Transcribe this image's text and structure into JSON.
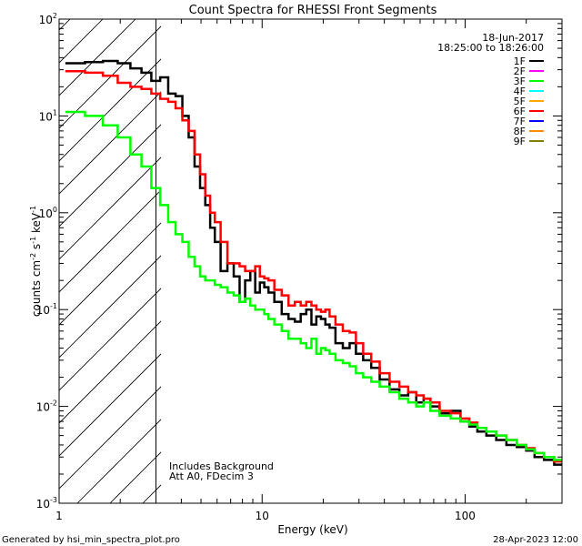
{
  "chart_data": {
    "type": "line",
    "title": "Count Spectra for RHESSI Front Segments",
    "xlabel": "Energy (keV)",
    "ylabel": "counts cm⁻² s⁻¹ keV⁻¹",
    "ylabel_parts": {
      "main": "counts cm",
      "e1": "-2",
      "mid1": " s",
      "e2": "-1",
      "mid2": " keV",
      "e3": "-1"
    },
    "x_scale": "log",
    "y_scale": "log",
    "xlim": [
      1,
      300
    ],
    "ylim": [
      0.001,
      100
    ],
    "x_ticks": [
      {
        "value": 1,
        "label": "1"
      },
      {
        "value": 10,
        "label": "10"
      },
      {
        "value": 100,
        "label": "100"
      }
    ],
    "y_ticks": [
      {
        "value": 0.001,
        "base": "10",
        "exp": "-3"
      },
      {
        "value": 0.01,
        "base": "10",
        "exp": "-2"
      },
      {
        "value": 0.1,
        "base": "10",
        "exp": "-1"
      },
      {
        "value": 1,
        "base": "10",
        "exp": "0"
      },
      {
        "value": 10,
        "base": "10",
        "exp": "1"
      },
      {
        "value": 100,
        "base": "10",
        "exp": "2"
      }
    ],
    "hatched_region": [
      1,
      3
    ],
    "date": "18-Jun-2017",
    "time_range": "18:25:00 to 18:26:00",
    "legend": [
      {
        "label": "1F",
        "color": "#000000"
      },
      {
        "label": "2F",
        "color": "#ff00ff"
      },
      {
        "label": "3F",
        "color": "#00ff00"
      },
      {
        "label": "4F",
        "color": "#00ffff"
      },
      {
        "label": "5F",
        "color": "#ffaa00"
      },
      {
        "label": "6F",
        "color": "#ff0000"
      },
      {
        "label": "7F",
        "color": "#0000ff"
      },
      {
        "label": "8F",
        "color": "#ff8800"
      },
      {
        "label": "9F",
        "color": "#808000"
      }
    ],
    "annotations": [
      "Includes Background",
      "Att A0, FDecim 3"
    ],
    "series": [
      {
        "name": "1F",
        "color": "#000000",
        "points": [
          [
            1.2,
            35
          ],
          [
            1.5,
            36
          ],
          [
            1.8,
            37
          ],
          [
            2.1,
            35
          ],
          [
            2.4,
            31
          ],
          [
            2.7,
            28
          ],
          [
            3.0,
            23
          ],
          [
            3.3,
            25
          ],
          [
            3.6,
            17
          ],
          [
            3.9,
            16
          ],
          [
            4.2,
            10
          ],
          [
            4.5,
            6
          ],
          [
            4.8,
            3
          ],
          [
            5.1,
            1.8
          ],
          [
            5.4,
            1.2
          ],
          [
            5.7,
            0.7
          ],
          [
            6.0,
            0.5
          ],
          [
            6.5,
            0.25
          ],
          [
            7.0,
            0.3
          ],
          [
            7.5,
            0.22
          ],
          [
            8.0,
            0.12
          ],
          [
            8.5,
            0.2
          ],
          [
            9.0,
            0.25
          ],
          [
            9.5,
            0.15
          ],
          [
            10.0,
            0.19
          ],
          [
            10.5,
            0.17
          ],
          [
            11.0,
            0.15
          ],
          [
            12.0,
            0.12
          ],
          [
            13.0,
            0.09
          ],
          [
            14.0,
            0.08
          ],
          [
            15.0,
            0.075
          ],
          [
            16.0,
            0.09
          ],
          [
            17.0,
            0.1
          ],
          [
            18.0,
            0.07
          ],
          [
            19.0,
            0.085
          ],
          [
            20.0,
            0.08
          ],
          [
            21.0,
            0.07
          ],
          [
            22.0,
            0.065
          ],
          [
            24.0,
            0.045
          ],
          [
            26.0,
            0.04
          ],
          [
            28.0,
            0.045
          ],
          [
            30.0,
            0.035
          ],
          [
            33.0,
            0.03
          ],
          [
            36.0,
            0.025
          ],
          [
            40.0,
            0.019
          ],
          [
            45.0,
            0.015
          ],
          [
            50.0,
            0.013
          ],
          [
            55.0,
            0.014
          ],
          [
            60.0,
            0.011
          ],
          [
            65.0,
            0.012
          ],
          [
            70.0,
            0.01
          ],
          [
            80.0,
            0.0085
          ],
          [
            90.0,
            0.009
          ],
          [
            100.0,
            0.007
          ],
          [
            110.0,
            0.0062
          ],
          [
            120.0,
            0.0055
          ],
          [
            135.0,
            0.005
          ],
          [
            150.0,
            0.0045
          ],
          [
            170.0,
            0.004
          ],
          [
            190.0,
            0.0038
          ],
          [
            210.0,
            0.0035
          ],
          [
            230.0,
            0.003
          ],
          [
            260.0,
            0.0028
          ],
          [
            290.0,
            0.0025
          ]
        ]
      },
      {
        "name": "6F",
        "color": "#ff0000",
        "points": [
          [
            1.2,
            29
          ],
          [
            1.5,
            28
          ],
          [
            1.8,
            26
          ],
          [
            2.1,
            22
          ],
          [
            2.4,
            20
          ],
          [
            2.7,
            19
          ],
          [
            3.0,
            17
          ],
          [
            3.3,
            15
          ],
          [
            3.6,
            14
          ],
          [
            3.9,
            12
          ],
          [
            4.2,
            9
          ],
          [
            4.5,
            7
          ],
          [
            4.8,
            4
          ],
          [
            5.1,
            2.5
          ],
          [
            5.4,
            1.5
          ],
          [
            5.7,
            1.0
          ],
          [
            6.0,
            0.8
          ],
          [
            6.5,
            0.5
          ],
          [
            7.0,
            0.3
          ],
          [
            7.5,
            0.3
          ],
          [
            8.0,
            0.28
          ],
          [
            8.5,
            0.25
          ],
          [
            9.0,
            0.25
          ],
          [
            9.5,
            0.28
          ],
          [
            10.0,
            0.22
          ],
          [
            10.5,
            0.21
          ],
          [
            11.0,
            0.2
          ],
          [
            12.0,
            0.16
          ],
          [
            13.0,
            0.14
          ],
          [
            14.0,
            0.11
          ],
          [
            15.0,
            0.12
          ],
          [
            16.0,
            0.11
          ],
          [
            17.0,
            0.12
          ],
          [
            18.0,
            0.11
          ],
          [
            19.0,
            0.1
          ],
          [
            20.0,
            0.095
          ],
          [
            21.0,
            0.1
          ],
          [
            22.0,
            0.085
          ],
          [
            24.0,
            0.07
          ],
          [
            26.0,
            0.06
          ],
          [
            28.0,
            0.058
          ],
          [
            30.0,
            0.045
          ],
          [
            33.0,
            0.035
          ],
          [
            36.0,
            0.029
          ],
          [
            40.0,
            0.022
          ],
          [
            45.0,
            0.018
          ],
          [
            50.0,
            0.016
          ],
          [
            55.0,
            0.014
          ],
          [
            60.0,
            0.013
          ],
          [
            65.0,
            0.012
          ],
          [
            70.0,
            0.011
          ],
          [
            80.0,
            0.009
          ],
          [
            90.0,
            0.0085
          ],
          [
            100.0,
            0.0075
          ],
          [
            110.0,
            0.0068
          ],
          [
            120.0,
            0.006
          ],
          [
            135.0,
            0.0055
          ],
          [
            150.0,
            0.005
          ],
          [
            170.0,
            0.0045
          ],
          [
            190.0,
            0.004
          ],
          [
            210.0,
            0.0037
          ],
          [
            230.0,
            0.0033
          ],
          [
            260.0,
            0.003
          ],
          [
            290.0,
            0.0027
          ]
        ]
      },
      {
        "name": "3F",
        "color": "#00ff00",
        "points": [
          [
            1.2,
            11
          ],
          [
            1.5,
            10
          ],
          [
            1.8,
            8
          ],
          [
            2.1,
            6
          ],
          [
            2.4,
            4
          ],
          [
            2.7,
            3
          ],
          [
            3.0,
            1.8
          ],
          [
            3.3,
            1.2
          ],
          [
            3.6,
            0.8
          ],
          [
            3.9,
            0.6
          ],
          [
            4.2,
            0.5
          ],
          [
            4.5,
            0.35
          ],
          [
            4.8,
            0.28
          ],
          [
            5.1,
            0.22
          ],
          [
            5.4,
            0.2
          ],
          [
            5.7,
            0.2
          ],
          [
            6.0,
            0.18
          ],
          [
            6.5,
            0.17
          ],
          [
            7.0,
            0.15
          ],
          [
            7.5,
            0.14
          ],
          [
            8.0,
            0.12
          ],
          [
            8.5,
            0.13
          ],
          [
            9.0,
            0.11
          ],
          [
            9.5,
            0.1
          ],
          [
            10.0,
            0.1
          ],
          [
            10.5,
            0.09
          ],
          [
            11.0,
            0.08
          ],
          [
            12.0,
            0.07
          ],
          [
            13.0,
            0.06
          ],
          [
            14.0,
            0.05
          ],
          [
            15.0,
            0.05
          ],
          [
            16.0,
            0.045
          ],
          [
            17.0,
            0.04
          ],
          [
            18.0,
            0.05
          ],
          [
            19.0,
            0.035
          ],
          [
            20.0,
            0.04
          ],
          [
            21.0,
            0.038
          ],
          [
            22.0,
            0.035
          ],
          [
            24.0,
            0.03
          ],
          [
            26.0,
            0.028
          ],
          [
            28.0,
            0.026
          ],
          [
            30.0,
            0.022
          ],
          [
            33.0,
            0.02
          ],
          [
            36.0,
            0.018
          ],
          [
            40.0,
            0.016
          ],
          [
            45.0,
            0.014
          ],
          [
            50.0,
            0.012
          ],
          [
            55.0,
            0.011
          ],
          [
            60.0,
            0.01
          ],
          [
            65.0,
            0.011
          ],
          [
            70.0,
            0.009
          ],
          [
            80.0,
            0.008
          ],
          [
            90.0,
            0.0075
          ],
          [
            100.0,
            0.007
          ],
          [
            110.0,
            0.0065
          ],
          [
            120.0,
            0.006
          ],
          [
            135.0,
            0.0055
          ],
          [
            150.0,
            0.005
          ],
          [
            170.0,
            0.0045
          ],
          [
            190.0,
            0.004
          ],
          [
            210.0,
            0.0036
          ],
          [
            230.0,
            0.0033
          ],
          [
            260.0,
            0.003
          ],
          [
            290.0,
            0.0028
          ]
        ]
      }
    ]
  },
  "footer": {
    "left": "Generated by hsi_min_spectra_plot.pro",
    "right": "28-Apr-2023 12:00"
  }
}
